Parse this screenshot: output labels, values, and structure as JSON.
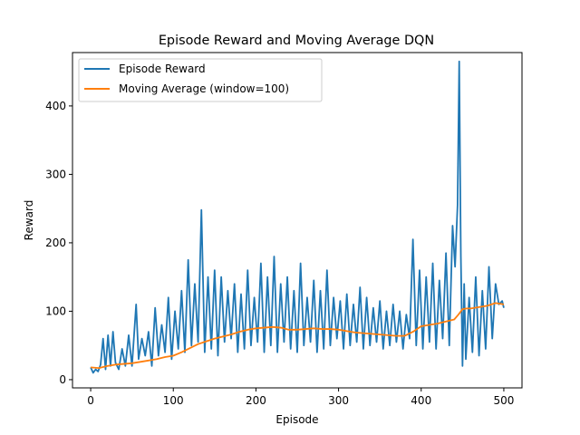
{
  "chart_data": {
    "type": "line",
    "title": "Episode Reward and Moving Average DQN",
    "xlabel": "Episode",
    "ylabel": "Reward",
    "xlim": [
      -22,
      522
    ],
    "ylim": [
      -12,
      478
    ],
    "xticks": [
      0,
      100,
      200,
      300,
      400,
      500
    ],
    "yticks": [
      0,
      100,
      200,
      300,
      400
    ],
    "grid": false,
    "legend": "top-left",
    "series": [
      {
        "name": "Episode Reward",
        "color": "#1f77b4",
        "x": [
          0,
          3,
          6,
          9,
          12,
          15,
          18,
          21,
          24,
          27,
          30,
          34,
          38,
          42,
          46,
          50,
          55,
          58,
          62,
          66,
          70,
          74,
          78,
          82,
          86,
          90,
          94,
          98,
          102,
          106,
          110,
          114,
          118,
          122,
          126,
          130,
          134,
          138,
          142,
          146,
          150,
          154,
          158,
          162,
          166,
          170,
          174,
          178,
          182,
          186,
          190,
          194,
          198,
          202,
          206,
          210,
          214,
          218,
          222,
          226,
          230,
          234,
          238,
          242,
          246,
          250,
          254,
          258,
          262,
          266,
          270,
          274,
          278,
          282,
          286,
          290,
          294,
          298,
          302,
          306,
          310,
          314,
          318,
          322,
          326,
          330,
          334,
          338,
          342,
          346,
          350,
          354,
          358,
          362,
          366,
          370,
          374,
          378,
          382,
          386,
          390,
          394,
          398,
          402,
          406,
          410,
          414,
          418,
          422,
          426,
          430,
          434,
          438,
          441,
          444,
          446,
          448,
          450,
          452,
          454,
          458,
          462,
          466,
          470,
          474,
          478,
          482,
          486,
          490,
          494,
          498,
          500
        ],
        "values": [
          18,
          10,
          15,
          12,
          22,
          60,
          15,
          65,
          20,
          70,
          25,
          15,
          45,
          20,
          65,
          20,
          110,
          30,
          60,
          35,
          70,
          20,
          105,
          35,
          80,
          40,
          120,
          30,
          100,
          45,
          130,
          40,
          175,
          50,
          140,
          55,
          248,
          40,
          150,
          45,
          160,
          35,
          150,
          55,
          130,
          60,
          140,
          40,
          125,
          45,
          160,
          50,
          120,
          55,
          170,
          40,
          150,
          50,
          180,
          40,
          140,
          55,
          150,
          45,
          130,
          40,
          170,
          50,
          120,
          55,
          145,
          40,
          130,
          45,
          160,
          50,
          120,
          60,
          115,
          45,
          125,
          50,
          110,
          55,
          135,
          45,
          120,
          50,
          105,
          55,
          115,
          45,
          100,
          50,
          110,
          55,
          100,
          45,
          95,
          60,
          205,
          50,
          160,
          45,
          150,
          55,
          170,
          45,
          145,
          60,
          185,
          50,
          225,
          165,
          255,
          465,
          180,
          20,
          140,
          30,
          120,
          40,
          150,
          35,
          130,
          45,
          165,
          60,
          140,
          110,
          115,
          105
        ]
      },
      {
        "name": "Moving Average (window=100)",
        "color": "#ff7f0e",
        "x": [
          0,
          10,
          20,
          30,
          40,
          50,
          60,
          70,
          80,
          90,
          100,
          110,
          120,
          130,
          140,
          150,
          160,
          170,
          180,
          190,
          200,
          210,
          220,
          230,
          240,
          250,
          260,
          270,
          280,
          290,
          300,
          310,
          320,
          330,
          340,
          350,
          360,
          370,
          380,
          390,
          400,
          410,
          420,
          430,
          440,
          445,
          450,
          455,
          460,
          470,
          480,
          490,
          500
        ],
        "values": [
          18,
          17,
          20,
          22,
          23,
          24,
          26,
          28,
          30,
          33,
          35,
          40,
          46,
          52,
          56,
          60,
          63,
          66,
          70,
          73,
          75,
          76,
          77,
          76,
          73,
          73,
          74,
          75,
          74,
          74,
          73,
          71,
          69,
          68,
          67,
          66,
          65,
          64,
          64,
          70,
          78,
          80,
          82,
          85,
          88,
          95,
          103,
          104,
          104,
          106,
          108,
          112,
          110
        ]
      }
    ]
  }
}
